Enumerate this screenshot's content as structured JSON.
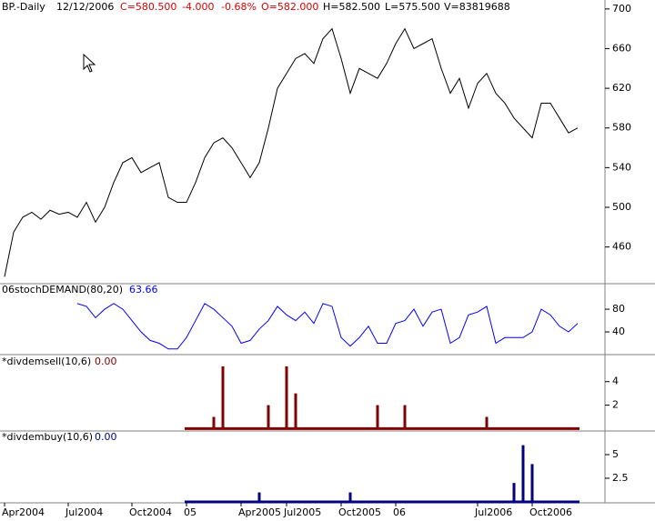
{
  "header": {
    "symbol": "BP.-Daily",
    "date": "12/12/2006",
    "close": "C=580.500",
    "change": "-4.000",
    "change_pct": "-0.68%",
    "open": "O=582.000",
    "high": "H=582.500",
    "low": "L=575.500",
    "volume": "V=83819688"
  },
  "chart_data": [
    {
      "type": "line",
      "color": "#000000",
      "values": [
        430,
        475,
        490,
        495,
        488,
        497,
        493,
        495,
        490,
        505,
        485,
        500,
        525,
        545,
        550,
        535,
        540,
        545,
        510,
        505,
        505,
        525,
        550,
        565,
        570,
        560,
        545,
        530,
        545,
        580,
        620,
        635,
        650,
        655,
        645,
        670,
        680,
        650,
        615,
        640,
        635,
        630,
        645,
        665,
        680,
        660,
        665,
        670,
        640,
        615,
        630,
        600,
        625,
        635,
        615,
        605,
        590,
        580,
        570,
        605,
        605,
        590,
        575,
        580
      ],
      "ylim": [
        423,
        709
      ],
      "yticks": [
        460,
        500,
        540,
        580,
        620,
        660,
        700
      ]
    },
    {
      "type": "line",
      "title": "06stochDEMAND(80,20)",
      "last_value": 63.66,
      "color": "#0000ff",
      "values": [
        null,
        null,
        null,
        null,
        null,
        null,
        null,
        null,
        90,
        85,
        65,
        80,
        90,
        80,
        60,
        40,
        25,
        20,
        10,
        10,
        30,
        60,
        90,
        80,
        65,
        50,
        20,
        25,
        45,
        60,
        85,
        70,
        60,
        75,
        55,
        90,
        85,
        30,
        15,
        30,
        50,
        20,
        20,
        55,
        60,
        80,
        50,
        75,
        80,
        20,
        30,
        70,
        75,
        85,
        20,
        30,
        30,
        30,
        40,
        80,
        70,
        50,
        40,
        55
      ],
      "ylim": [
        0,
        125
      ],
      "yticks": [
        40,
        80
      ]
    },
    {
      "type": "bar",
      "title": "*divdemsell(10,6)",
      "last_value": {
        "value": 0,
        "label": "0.00"
      },
      "color": "#800000",
      "values": [
        null,
        null,
        null,
        null,
        null,
        null,
        null,
        null,
        null,
        null,
        null,
        null,
        null,
        null,
        null,
        null,
        null,
        null,
        null,
        null,
        0,
        0,
        0,
        1,
        5.3,
        0,
        0,
        0,
        0,
        2,
        0,
        5.3,
        3,
        0,
        0,
        0,
        0,
        0,
        0,
        0,
        0,
        2,
        0,
        0,
        2,
        0,
        0,
        0,
        0,
        0,
        0,
        0,
        0,
        1,
        0,
        0,
        0,
        0,
        0,
        0,
        0,
        0,
        0,
        0
      ],
      "ylim": [
        -0.2,
        6.3
      ],
      "yticks": [
        2,
        4
      ]
    },
    {
      "type": "bar",
      "title": "*divdembuy(10,6)",
      "last_value": {
        "value": 0,
        "label": "0.00"
      },
      "color": "#000080",
      "categories": [
        "Apr2004",
        null,
        null,
        null,
        null,
        null,
        null,
        "Jul2004",
        null,
        null,
        null,
        null,
        null,
        null,
        "Oct2004",
        null,
        null,
        null,
        null,
        null,
        "05",
        null,
        null,
        null,
        null,
        null,
        "Apr2005",
        null,
        null,
        null,
        null,
        "Jul2005",
        null,
        null,
        null,
        null,
        null,
        "Oct2005",
        null,
        null,
        null,
        null,
        null,
        "06",
        null,
        null,
        null,
        null,
        null,
        null,
        null,
        null,
        "Jul2006",
        null,
        null,
        null,
        null,
        null,
        "Oct2006",
        null,
        null,
        null,
        null,
        null
      ],
      "values": [
        null,
        null,
        null,
        null,
        null,
        null,
        null,
        null,
        null,
        null,
        null,
        null,
        null,
        null,
        null,
        null,
        null,
        null,
        null,
        null,
        0,
        0,
        0,
        0,
        0,
        0,
        0,
        0,
        1,
        0,
        0,
        0,
        0,
        0,
        0,
        0,
        0,
        0,
        1,
        0,
        0,
        0,
        0,
        0,
        0,
        0,
        0,
        0,
        0,
        0,
        0,
        0,
        0,
        0,
        0,
        0,
        2,
        6,
        4,
        0,
        0,
        0,
        0,
        0
      ],
      "ylim": [
        -0.1,
        7.5
      ],
      "yticks": [
        2.5,
        5
      ]
    }
  ]
}
